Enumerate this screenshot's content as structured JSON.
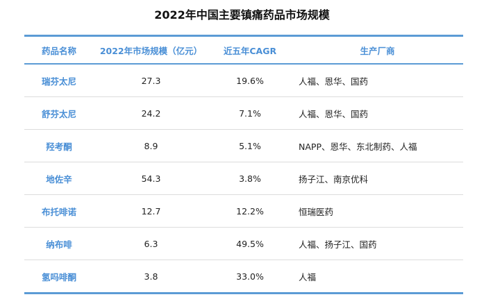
{
  "title": "2022年中国主要镇痛药品市场规模",
  "table": {
    "header": [
      "药品名称",
      "2022年市场规模（亿元）",
      "近五年CAGR",
      "生产厂商"
    ],
    "rows": [
      [
        "瑞芬太尼",
        "27.3",
        "19.6%",
        "人福、恩华、国药"
      ],
      [
        "舒芬太尼",
        "24.2",
        "7.1%",
        "人福、恩华、国药"
      ],
      [
        "羟考酮",
        "8.9",
        "5.1%",
        "NAPP、恩华、东北制药、人福"
      ],
      [
        "地佐辛",
        "54.3",
        "3.8%",
        "扬子江、南京优科"
      ],
      [
        "布托啡诺",
        "12.7",
        "12.2%",
        "恒瑞医药"
      ],
      [
        "纳布啡",
        "6.3",
        "49.5%",
        "人福、扬子江、国药"
      ],
      [
        "氢吗啡酮",
        "3.8",
        "33.0%",
        "人福"
      ]
    ]
  }
}
